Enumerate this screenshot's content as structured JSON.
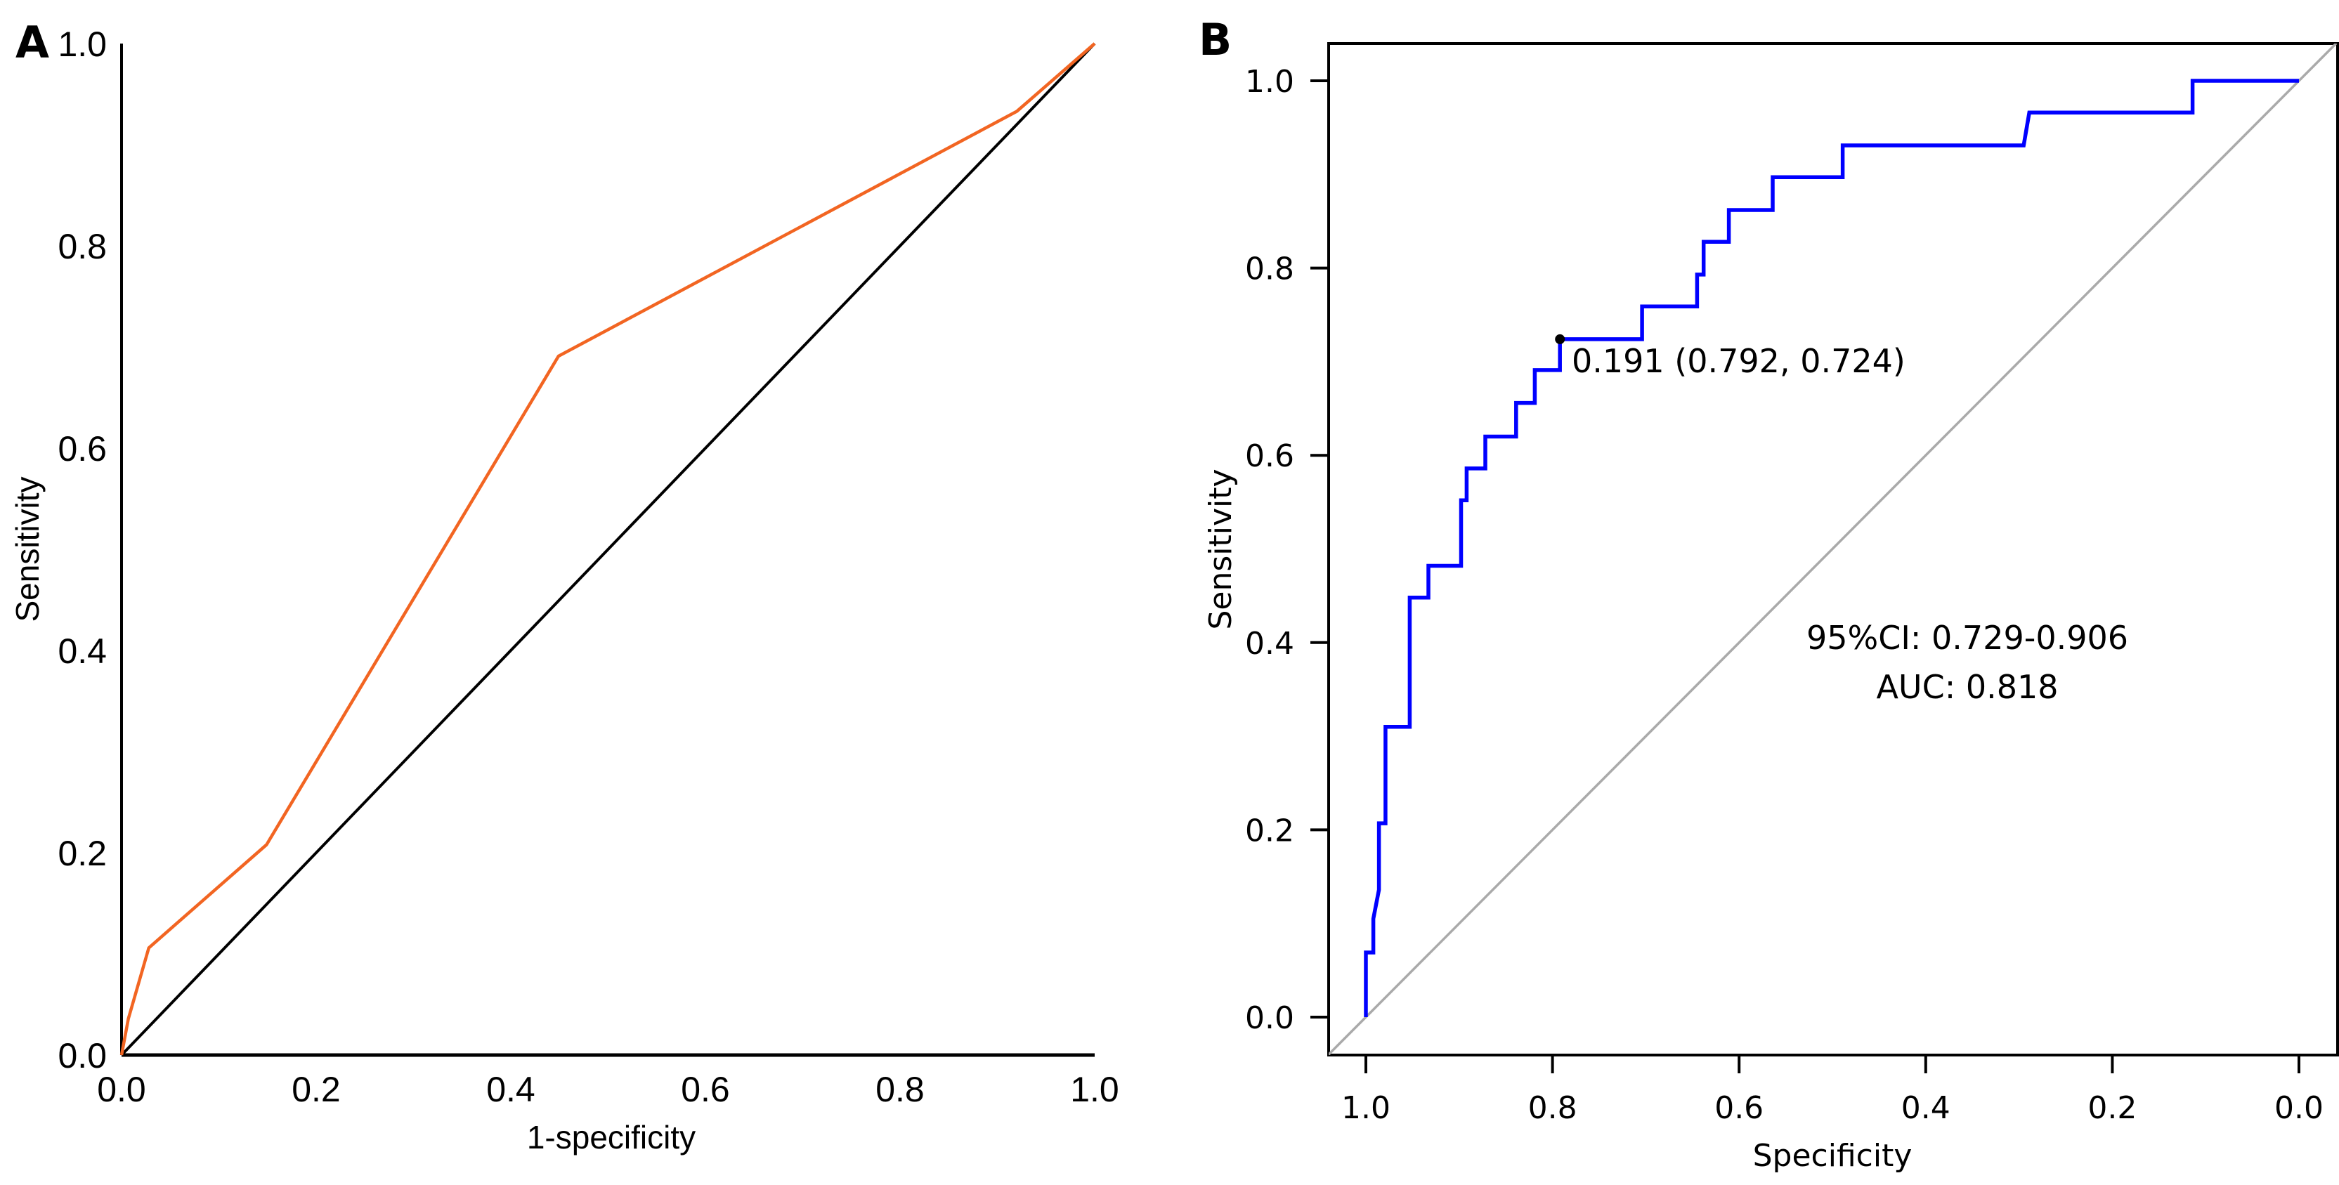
{
  "chart_data": [
    {
      "panel": "A",
      "type": "line",
      "title": "",
      "xlabel": "1-specificity",
      "ylabel": "Sensitivity",
      "xlim": [
        0,
        1
      ],
      "ylim": [
        0,
        1
      ],
      "xticks": [
        "0.0",
        "0.2",
        "0.4",
        "0.6",
        "0.8",
        "1.0"
      ],
      "yticks": [
        "0.0",
        "0.2",
        "0.4",
        "0.6",
        "0.8",
        "1.0"
      ],
      "grid": false,
      "series": [
        {
          "name": "ROC curve",
          "color": "#f26522",
          "x": [
            0.0,
            0.007,
            0.028,
            0.149,
            0.449,
            0.92,
            1.0
          ],
          "y": [
            0.0,
            0.036,
            0.106,
            0.208,
            0.691,
            0.933,
            1.0
          ]
        },
        {
          "name": "Reference line",
          "color": "#000000",
          "x": [
            0.0,
            1.0
          ],
          "y": [
            0.0,
            1.0
          ]
        }
      ]
    },
    {
      "panel": "B",
      "type": "line",
      "title": "",
      "xlabel": "Specificity",
      "ylabel": "Sensitivity",
      "xlim": [
        1.0,
        0.0
      ],
      "ylim": [
        0,
        1
      ],
      "xticks": [
        "1.0",
        "0.8",
        "0.6",
        "0.4",
        "0.2",
        "0.0"
      ],
      "yticks": [
        "0.0",
        "0.2",
        "0.4",
        "0.6",
        "0.8",
        "1.0"
      ],
      "grid": false,
      "series": [
        {
          "name": "ROC curve",
          "color": "#0000ff",
          "x": [
            1.0,
            1.0,
            0.992,
            0.992,
            0.986,
            0.986,
            0.979,
            0.979,
            0.953,
            0.953,
            0.933,
            0.933,
            0.898,
            0.898,
            0.892,
            0.892,
            0.872,
            0.872,
            0.839,
            0.839,
            0.819,
            0.819,
            0.792,
            0.792,
            0.704,
            0.704,
            0.645,
            0.645,
            0.638,
            0.638,
            0.611,
            0.611,
            0.564,
            0.564,
            0.489,
            0.489,
            0.295,
            0.289,
            0.114,
            0.114,
            0.0
          ],
          "y": [
            0.0,
            0.069,
            0.069,
            0.105,
            0.136,
            0.207,
            0.207,
            0.31,
            0.31,
            0.448,
            0.448,
            0.482,
            0.482,
            0.552,
            0.552,
            0.586,
            0.586,
            0.62,
            0.62,
            0.656,
            0.656,
            0.691,
            0.691,
            0.724,
            0.724,
            0.759,
            0.759,
            0.793,
            0.793,
            0.828,
            0.828,
            0.862,
            0.862,
            0.897,
            0.897,
            0.931,
            0.931,
            0.966,
            0.966,
            1.0,
            1.0
          ]
        },
        {
          "name": "Reference line",
          "color": "#aaaaaa",
          "x": [
            1.04,
            -0.04
          ],
          "y": [
            -0.04,
            1.04
          ]
        }
      ],
      "annotations": [
        {
          "text": "0.191 (0.792, 0.724)",
          "point": [
            0.792,
            0.724
          ],
          "threshold": 0.191
        },
        {
          "text": "95%CI: 0.729-0.906"
        },
        {
          "text": "AUC: 0.818"
        }
      ],
      "auc": 0.818,
      "ci95": [
        0.729,
        0.906
      ]
    }
  ],
  "panels": {
    "a_label": "A",
    "b_label": "B"
  },
  "annotations": {
    "cutoff": "0.191 (0.792, 0.724)",
    "ci": "95%CI: 0.729-0.906",
    "auc": "AUC: 0.818"
  }
}
